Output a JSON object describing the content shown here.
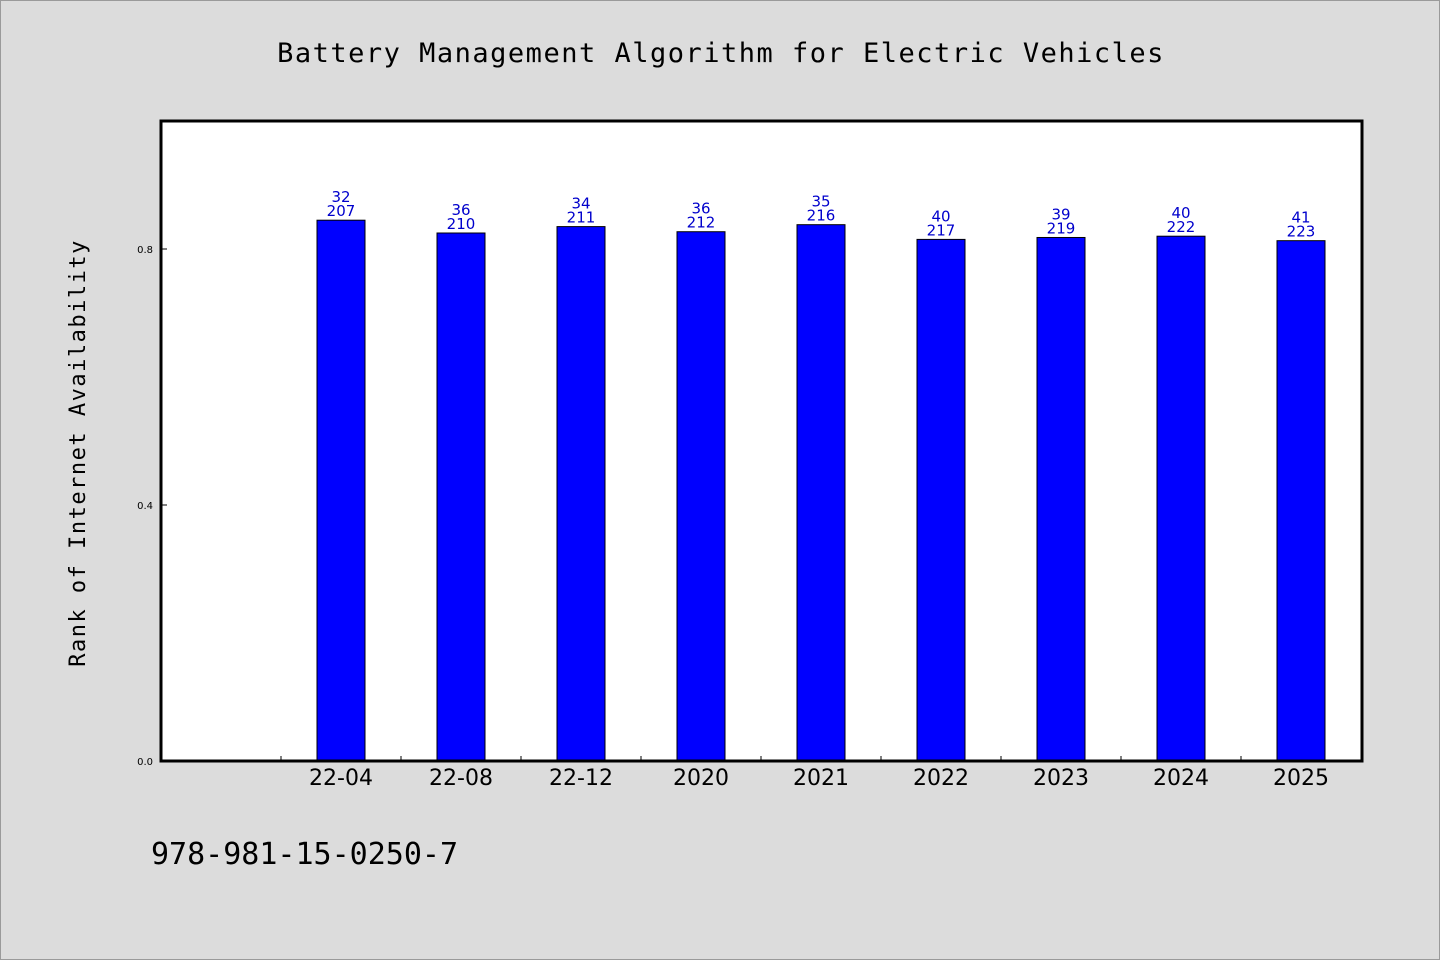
{
  "chart_data": {
    "type": "bar",
    "title": "Battery Management Algorithm for Electric Vehicles",
    "xlabel": "",
    "ylabel": "Rank of Internet Availability",
    "categories": [
      "22-04",
      "22-08",
      "22-12",
      "2020",
      "2021",
      "2022",
      "2023",
      "2024",
      "2025"
    ],
    "values": [
      0.845,
      0.825,
      0.835,
      0.827,
      0.838,
      0.815,
      0.818,
      0.82,
      0.813
    ],
    "label_top": [
      "32",
      "36",
      "34",
      "36",
      "35",
      "40",
      "39",
      "40",
      "41"
    ],
    "label_bottom": [
      "207",
      "210",
      "211",
      "212",
      "216",
      "217",
      "219",
      "222",
      "223"
    ],
    "yticks": [
      0.0,
      0.4,
      0.8
    ],
    "ytick_labels": [
      "0.0",
      "0.4",
      "0.8"
    ],
    "ylim": [
      0,
      1.0
    ],
    "grid": false,
    "legend": "none",
    "bar_color": "#0000ff",
    "label_color": "#0000cc",
    "background_color": "#dcdcdc",
    "plot_background": "#ffffff"
  },
  "footer": {
    "isbn": "978-981-15-0250-7"
  }
}
